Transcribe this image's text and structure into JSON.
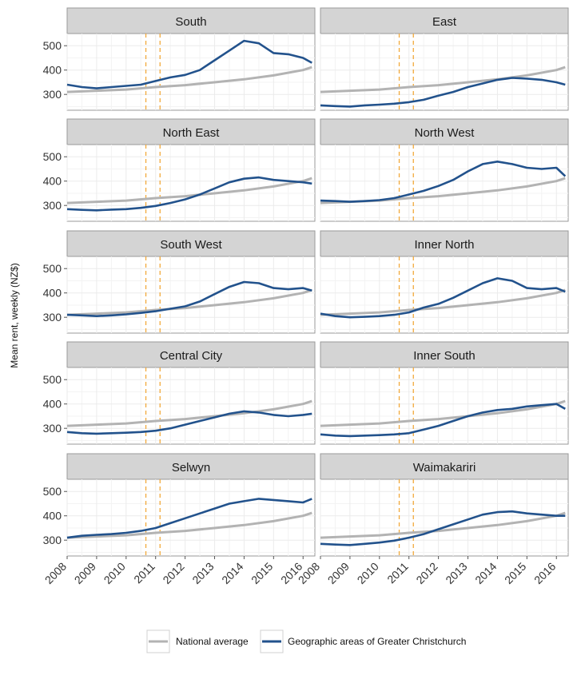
{
  "chart_data": {
    "type": "line",
    "ylabel": "Mean rent, weekly (NZ$)",
    "x_ticks": [
      "2008",
      "2009",
      "2010",
      "2011",
      "2012",
      "2013",
      "2014",
      "2015",
      "2016"
    ],
    "y_ticks": [
      300,
      400,
      500
    ],
    "xlim": [
      2008,
      2016.4
    ],
    "ylim": [
      235,
      550
    ],
    "event_lines": [
      2010.67,
      2011.15
    ],
    "grid": true,
    "legend_position": "bottom",
    "colors": {
      "national": "#b3b3b3",
      "area": "#22528c",
      "event": "#f2a93b",
      "strip_bg": "#d4d4d4",
      "grid": "#ebebeb"
    },
    "series_names": {
      "national": "National average",
      "area": "Geographic areas of Greater Christchurch"
    },
    "national": {
      "x": [
        2008,
        2009,
        2010,
        2011,
        2012,
        2013,
        2014,
        2015,
        2016,
        2016.3
      ],
      "y": [
        310,
        315,
        320,
        330,
        338,
        350,
        362,
        378,
        400,
        412
      ]
    },
    "panels": [
      {
        "title": "South",
        "x": [
          2008,
          2008.5,
          2009,
          2009.5,
          2010,
          2010.5,
          2011,
          2011.5,
          2012,
          2012.5,
          2013,
          2013.5,
          2014,
          2014.5,
          2015,
          2015.5,
          2016,
          2016.3
        ],
        "y": [
          340,
          330,
          325,
          330,
          335,
          340,
          355,
          370,
          380,
          400,
          440,
          480,
          520,
          510,
          470,
          465,
          450,
          430
        ]
      },
      {
        "title": "East",
        "x": [
          2008,
          2008.5,
          2009,
          2009.5,
          2010,
          2010.5,
          2011,
          2011.5,
          2012,
          2012.5,
          2013,
          2013.5,
          2014,
          2014.5,
          2015,
          2015.5,
          2016,
          2016.3
        ],
        "y": [
          255,
          252,
          250,
          255,
          258,
          262,
          268,
          278,
          295,
          310,
          330,
          345,
          360,
          368,
          365,
          360,
          350,
          340
        ]
      },
      {
        "title": "North East",
        "x": [
          2008,
          2008.5,
          2009,
          2009.5,
          2010,
          2010.5,
          2011,
          2011.5,
          2012,
          2012.5,
          2013,
          2013.5,
          2014,
          2014.5,
          2015,
          2015.5,
          2016,
          2016.3
        ],
        "y": [
          285,
          282,
          280,
          283,
          285,
          290,
          298,
          310,
          325,
          345,
          370,
          395,
          410,
          415,
          405,
          400,
          395,
          390
        ]
      },
      {
        "title": "North West",
        "x": [
          2008,
          2008.5,
          2009,
          2009.5,
          2010,
          2010.5,
          2011,
          2011.5,
          2012,
          2012.5,
          2013,
          2013.5,
          2014,
          2014.5,
          2015,
          2015.5,
          2016,
          2016.3
        ],
        "y": [
          320,
          318,
          315,
          318,
          322,
          330,
          345,
          360,
          380,
          405,
          440,
          470,
          480,
          470,
          455,
          450,
          455,
          420
        ]
      },
      {
        "title": "South West",
        "x": [
          2008,
          2008.5,
          2009,
          2009.5,
          2010,
          2010.5,
          2011,
          2011.5,
          2012,
          2012.5,
          2013,
          2013.5,
          2014,
          2014.5,
          2015,
          2015.5,
          2016,
          2016.3
        ],
        "y": [
          310,
          308,
          305,
          308,
          312,
          318,
          325,
          335,
          345,
          365,
          395,
          425,
          445,
          440,
          420,
          415,
          420,
          410
        ]
      },
      {
        "title": "Inner North",
        "x": [
          2008,
          2008.5,
          2009,
          2009.5,
          2010,
          2010.5,
          2011,
          2011.5,
          2012,
          2012.5,
          2013,
          2013.5,
          2014,
          2014.5,
          2015,
          2015.5,
          2016,
          2016.3
        ],
        "y": [
          315,
          305,
          300,
          302,
          305,
          310,
          320,
          340,
          355,
          380,
          410,
          440,
          460,
          450,
          420,
          415,
          420,
          405
        ]
      },
      {
        "title": "Central City",
        "x": [
          2008,
          2008.5,
          2009,
          2009.5,
          2010,
          2010.5,
          2011,
          2011.5,
          2012,
          2012.5,
          2013,
          2013.5,
          2014,
          2014.5,
          2015,
          2015.5,
          2016,
          2016.3
        ],
        "y": [
          285,
          280,
          278,
          280,
          282,
          285,
          290,
          300,
          315,
          330,
          345,
          360,
          370,
          365,
          355,
          350,
          355,
          360
        ]
      },
      {
        "title": "Inner South",
        "x": [
          2008,
          2008.5,
          2009,
          2009.5,
          2010,
          2010.5,
          2011,
          2011.5,
          2012,
          2012.5,
          2013,
          2013.5,
          2014,
          2014.5,
          2015,
          2015.5,
          2016,
          2016.3
        ],
        "y": [
          275,
          270,
          268,
          270,
          272,
          275,
          280,
          295,
          310,
          330,
          350,
          365,
          375,
          380,
          390,
          395,
          400,
          380
        ]
      },
      {
        "title": "Selwyn",
        "x": [
          2008,
          2008.5,
          2009,
          2009.5,
          2010,
          2010.5,
          2011,
          2011.5,
          2012,
          2012.5,
          2013,
          2013.5,
          2014,
          2014.5,
          2015,
          2015.5,
          2016,
          2016.3
        ],
        "y": [
          310,
          318,
          322,
          325,
          330,
          338,
          350,
          370,
          390,
          410,
          430,
          450,
          460,
          470,
          465,
          460,
          455,
          470
        ]
      },
      {
        "title": "Waimakariri",
        "x": [
          2008,
          2008.5,
          2009,
          2009.5,
          2010,
          2010.5,
          2011,
          2011.5,
          2012,
          2012.5,
          2013,
          2013.5,
          2014,
          2014.5,
          2015,
          2015.5,
          2016,
          2016.3
        ],
        "y": [
          285,
          282,
          280,
          285,
          290,
          298,
          310,
          325,
          345,
          365,
          385,
          405,
          415,
          418,
          410,
          405,
          400,
          400
        ]
      }
    ]
  }
}
